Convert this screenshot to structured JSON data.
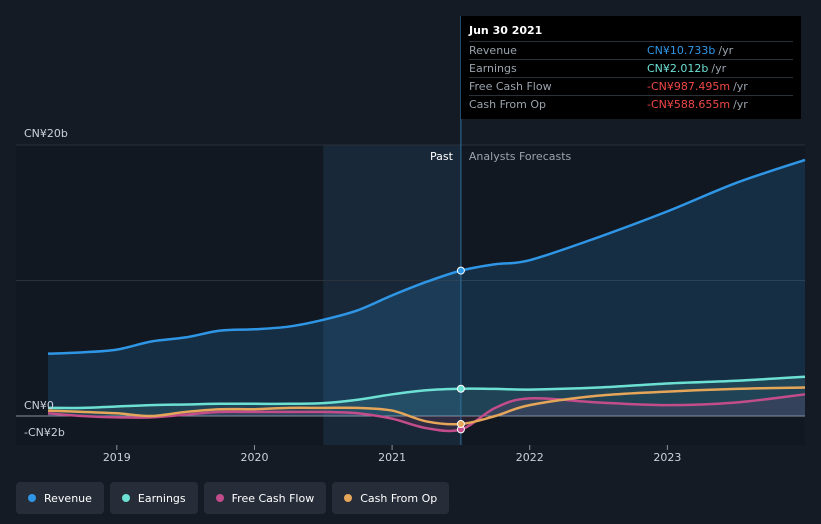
{
  "tooltip": {
    "date": "Jun 30 2021",
    "rows": [
      {
        "label": "Revenue",
        "value": "CN¥10.733b",
        "unit": "/yr",
        "color": "#2f96e6"
      },
      {
        "label": "Earnings",
        "value": "CN¥2.012b",
        "unit": "/yr",
        "color": "#6de0d4"
      },
      {
        "label": "Free Cash Flow",
        "value": "-CN¥987.495m",
        "unit": "/yr",
        "color": "#f04747"
      },
      {
        "label": "Cash From Op",
        "value": "-CN¥588.655m",
        "unit": "/yr",
        "color": "#f04747"
      }
    ]
  },
  "legend": [
    {
      "label": "Revenue",
      "color": "#2f96e6"
    },
    {
      "label": "Earnings",
      "color": "#6de0d4"
    },
    {
      "label": "Free Cash Flow",
      "color": "#c24d8a"
    },
    {
      "label": "Cash From Op",
      "color": "#e5a65a"
    }
  ],
  "chart_data": {
    "type": "line",
    "title": "",
    "y_labels": [
      "CN¥20b",
      "CN¥0",
      "-CN¥2b"
    ],
    "y_label_values": [
      20,
      0,
      -2
    ],
    "ylim": [
      -2,
      20
    ],
    "xlim": [
      2018.5,
      2024.0
    ],
    "x_ticks": [
      2019,
      2020,
      2021,
      2022,
      2023
    ],
    "x_tick_labels": [
      "2019",
      "2020",
      "2021",
      "2022",
      "2023"
    ],
    "past_label": "Past",
    "forecast_label": "Analysts Forecasts",
    "past_shade_start": 2020.5,
    "divider_x": 2021.5,
    "series": [
      {
        "name": "Revenue",
        "color": "#2f96e6",
        "fill": true,
        "x": [
          2018.5,
          2018.75,
          2019.0,
          2019.25,
          2019.5,
          2019.75,
          2020.0,
          2020.25,
          2020.5,
          2020.75,
          2021.0,
          2021.25,
          2021.5,
          2021.75,
          2022.0,
          2022.5,
          2023.0,
          2023.5,
          2024.0
        ],
        "values": [
          4.6,
          4.7,
          4.9,
          5.5,
          5.8,
          6.3,
          6.4,
          6.6,
          7.1,
          7.8,
          8.9,
          9.9,
          10.73,
          11.2,
          11.5,
          13.2,
          15.1,
          17.2,
          18.9
        ]
      },
      {
        "name": "Earnings",
        "color": "#6de0d4",
        "fill": true,
        "x": [
          2018.5,
          2018.75,
          2019.0,
          2019.25,
          2019.5,
          2019.75,
          2020.0,
          2020.25,
          2020.5,
          2020.75,
          2021.0,
          2021.25,
          2021.5,
          2021.75,
          2022.0,
          2022.5,
          2023.0,
          2023.5,
          2024.0
        ],
        "values": [
          0.6,
          0.6,
          0.7,
          0.8,
          0.85,
          0.9,
          0.9,
          0.9,
          0.95,
          1.2,
          1.6,
          1.9,
          2.01,
          2.0,
          1.95,
          2.1,
          2.4,
          2.6,
          2.9
        ]
      },
      {
        "name": "Free Cash Flow",
        "color": "#c24d8a",
        "fill": true,
        "x": [
          2018.5,
          2018.75,
          2019.0,
          2019.25,
          2019.5,
          2019.75,
          2020.0,
          2020.25,
          2020.5,
          2020.75,
          2021.0,
          2021.25,
          2021.5,
          2021.75,
          2022.0,
          2022.5,
          2023.0,
          2023.5,
          2024.0
        ],
        "values": [
          0.2,
          0.0,
          -0.1,
          -0.1,
          0.1,
          0.3,
          0.3,
          0.3,
          0.3,
          0.2,
          -0.2,
          -0.9,
          -0.99,
          0.6,
          1.3,
          1.0,
          0.8,
          1.0,
          1.6
        ]
      },
      {
        "name": "Cash From Op",
        "color": "#e5a65a",
        "fill": false,
        "x": [
          2018.5,
          2018.75,
          2019.0,
          2019.25,
          2019.5,
          2019.75,
          2020.0,
          2020.25,
          2020.5,
          2020.75,
          2021.0,
          2021.25,
          2021.5,
          2021.75,
          2022.0,
          2022.5,
          2023.0,
          2023.5,
          2024.0
        ],
        "values": [
          0.4,
          0.3,
          0.2,
          0.0,
          0.3,
          0.5,
          0.5,
          0.6,
          0.6,
          0.6,
          0.4,
          -0.4,
          -0.59,
          0.0,
          0.8,
          1.5,
          1.8,
          2.0,
          2.1
        ]
      }
    ]
  }
}
